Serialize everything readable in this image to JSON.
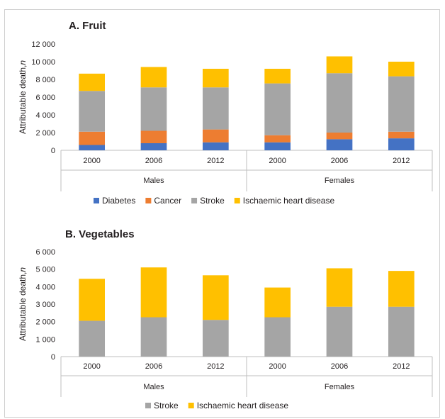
{
  "colors": {
    "Diabetes": "#4472c4",
    "Cancer": "#ed7d31",
    "Stroke": "#a5a5a5",
    "Ischaemic heart disease": "#ffc000"
  },
  "chart_data": [
    {
      "type": "bar",
      "stacked": true,
      "title": "A. Fruit",
      "ylabel": "Attributable death,",
      "ylabel_italic": "n",
      "ylim": [
        0,
        12000
      ],
      "yticks": [
        0,
        2000,
        4000,
        6000,
        8000,
        10000,
        12000
      ],
      "ytick_labels": [
        "0",
        "2 000",
        "4 000",
        "6 000",
        "8 000",
        "10 000",
        "12 000"
      ],
      "categories": [
        "2000",
        "2006",
        "2012",
        "2000",
        "2006",
        "2012"
      ],
      "groups": [
        {
          "label": "Males",
          "span": 3
        },
        {
          "label": "Females",
          "span": 3
        }
      ],
      "legend": "bottom",
      "series": [
        {
          "name": "Diabetes",
          "values": [
            600,
            800,
            900,
            900,
            1250,
            1350
          ]
        },
        {
          "name": "Cancer",
          "values": [
            1500,
            1400,
            1450,
            800,
            750,
            750
          ]
        },
        {
          "name": "Stroke",
          "values": [
            4600,
            4900,
            4750,
            5850,
            6700,
            6250
          ]
        },
        {
          "name": "Ischaemic heart disease",
          "values": [
            1950,
            2300,
            2100,
            1650,
            1900,
            1650
          ]
        }
      ]
    },
    {
      "type": "bar",
      "stacked": true,
      "title": "B. Vegetables",
      "ylabel": "Attributable death,",
      "ylabel_italic": "n",
      "ylim": [
        0,
        6000
      ],
      "yticks": [
        0,
        1000,
        2000,
        3000,
        4000,
        5000,
        6000
      ],
      "ytick_labels": [
        "0",
        "1 000",
        "2 000",
        "3 000",
        "4 000",
        "5 000",
        "6 000"
      ],
      "categories": [
        "2000",
        "2006",
        "2012",
        "2000",
        "2006",
        "2012"
      ],
      "groups": [
        {
          "label": "Males",
          "span": 3
        },
        {
          "label": "Females",
          "span": 3
        }
      ],
      "legend": "bottom",
      "series": [
        {
          "name": "Stroke",
          "values": [
            2050,
            2250,
            2100,
            2250,
            2850,
            2850
          ]
        },
        {
          "name": "Ischaemic heart disease",
          "values": [
            2400,
            2850,
            2550,
            1700,
            2200,
            2050
          ]
        }
      ]
    }
  ]
}
